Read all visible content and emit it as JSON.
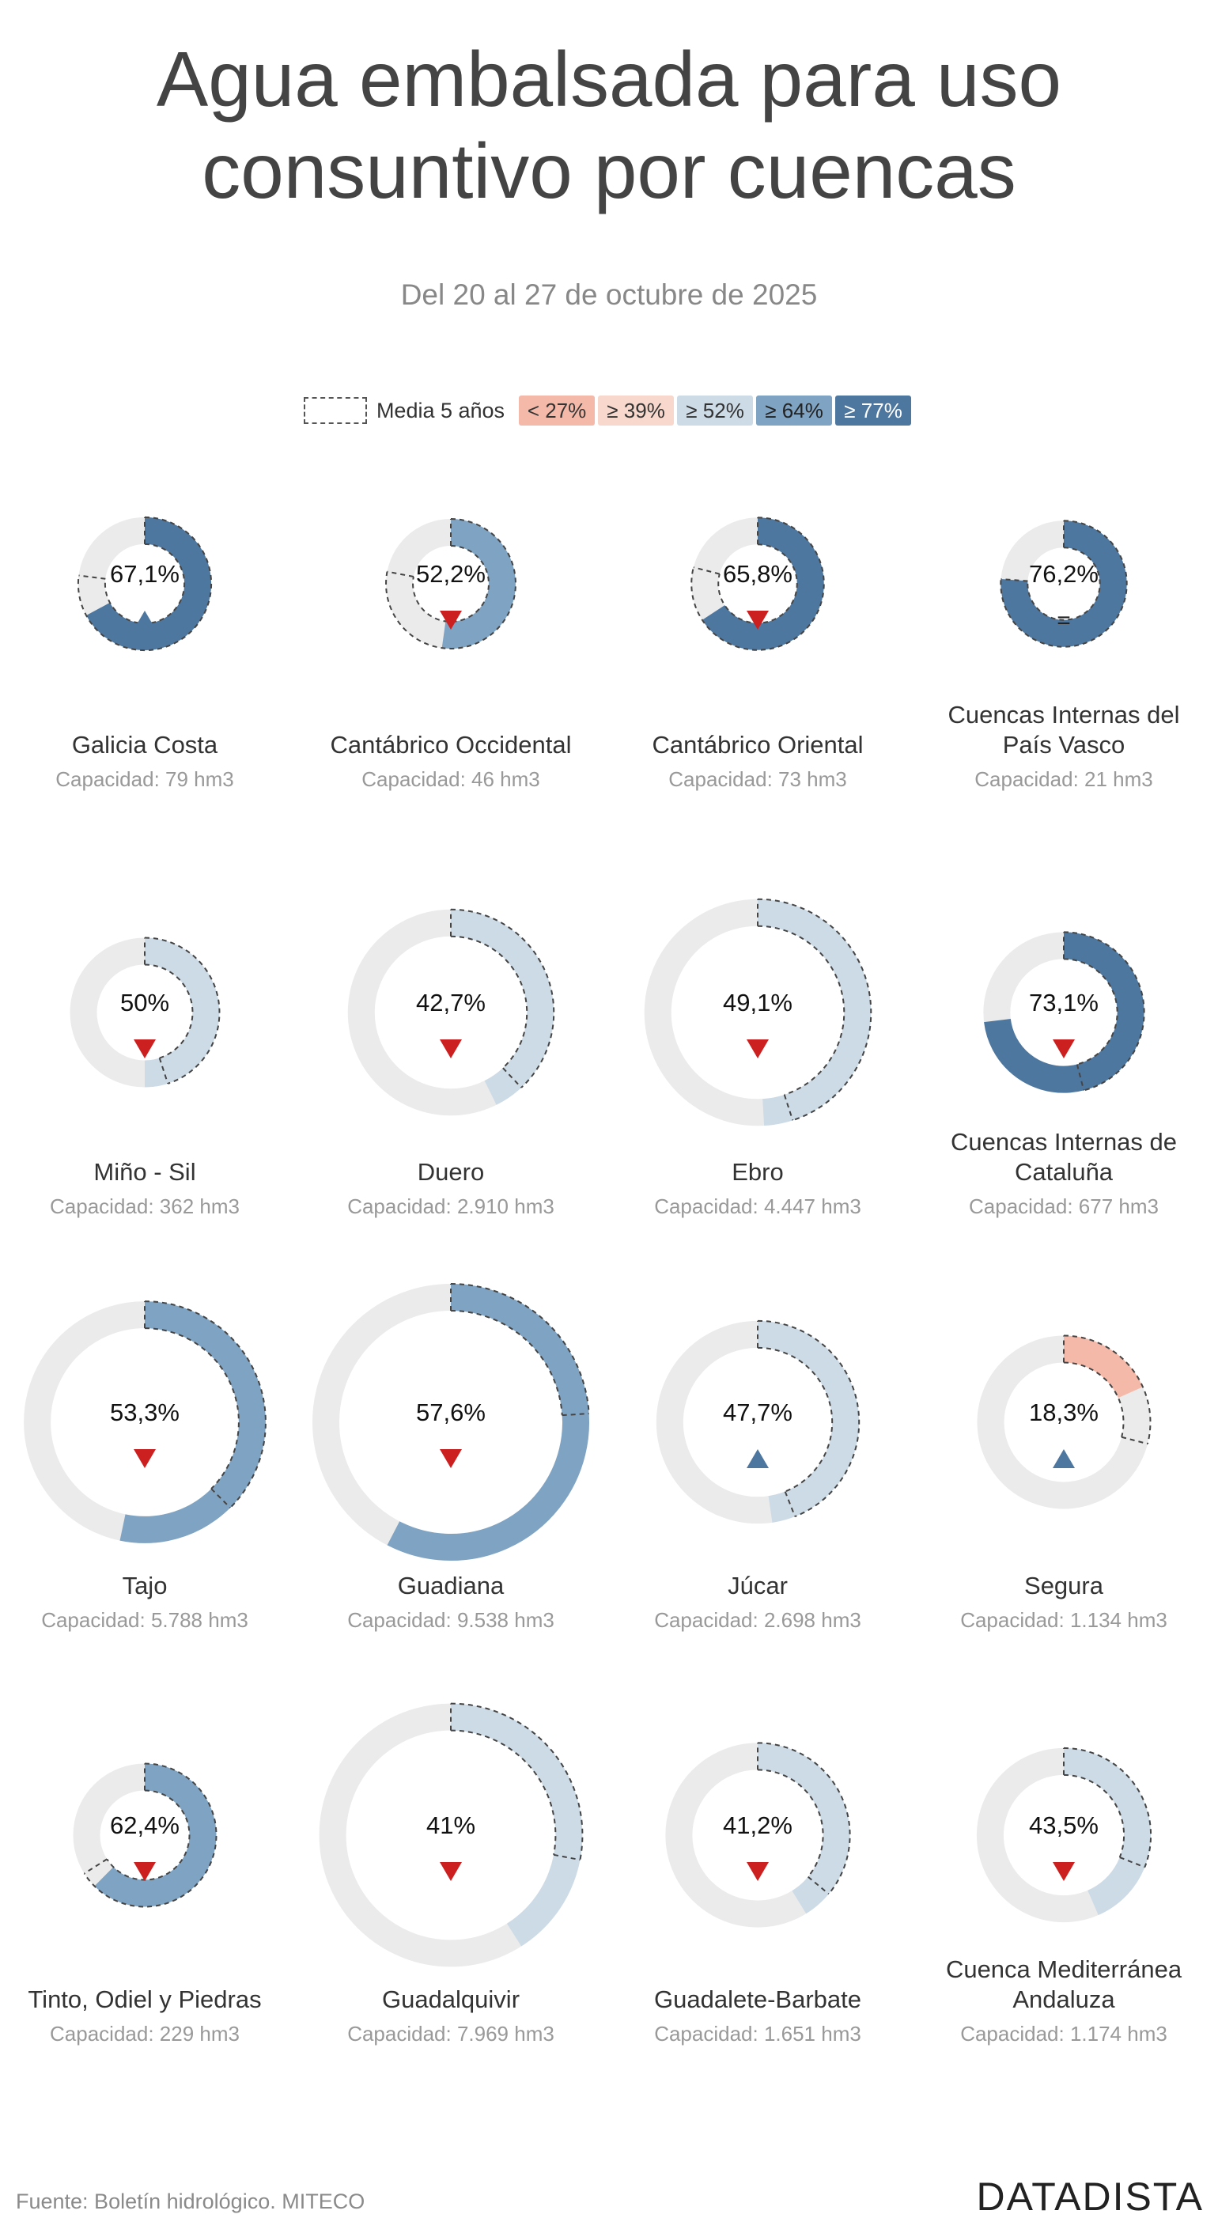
{
  "title_line1": "Agua embalsada para uso",
  "title_line2": "consuntivo por cuencas",
  "subtitle": "Del 20 al 27 de octubre de 2025",
  "legend": {
    "average_label": "Media 5 años",
    "bins": [
      {
        "label": "< 27%",
        "color": "#f4b9a8",
        "text_color": "#333333"
      },
      {
        "label": "≥ 39%",
        "color": "#f8d8cc",
        "text_color": "#333333"
      },
      {
        "label": "≥ 52%",
        "color": "#cddbe7",
        "text_color": "#333333"
      },
      {
        "label": "≥ 64%",
        "color": "#7fa3c3",
        "text_color": "#222222"
      },
      {
        "label": "≥ 77%",
        "color": "#4e77a0",
        "text_color": "#ffffff"
      }
    ]
  },
  "colors": {
    "track": "#ebebeb",
    "up_arrow": "#4e77a0",
    "down_arrow": "#cc2020",
    "equal": "#222222"
  },
  "chart_data": {
    "type": "donut-grid",
    "max_capacity_hm3": 9538,
    "items": [
      {
        "name": "Galicia Costa",
        "capacity_label": "Capacidad: 79 hm3",
        "capacity_hm3": 79,
        "pct_label": "67,1%",
        "value": 67.1,
        "avg": 77.0,
        "color": "#4e77a0",
        "trend": "up"
      },
      {
        "name": "Cantábrico Occidental",
        "capacity_label": "Capacidad: 46 hm3",
        "capacity_hm3": 46,
        "pct_label": "52,2%",
        "value": 52.2,
        "avg": 78.0,
        "color": "#7fa3c3",
        "trend": "down"
      },
      {
        "name": "Cantábrico Oriental",
        "capacity_label": "Capacidad: 73 hm3",
        "capacity_hm3": 73,
        "pct_label": "65,8%",
        "value": 65.8,
        "avg": 79.0,
        "color": "#4e77a0",
        "trend": "down"
      },
      {
        "name": "Cuencas Internas del País Vasco",
        "capacity_label": "Capacidad: 21 hm3",
        "capacity_hm3": 21,
        "pct_label": "76,2%",
        "value": 76.2,
        "avg": 76.2,
        "color": "#4e77a0",
        "trend": "equal"
      },
      {
        "name": "Miño - Sil",
        "capacity_label": "Capacidad: 362 hm3",
        "capacity_hm3": 362,
        "pct_label": "50%",
        "value": 50.0,
        "avg": 45.0,
        "color": "#cddbe7",
        "trend": "down"
      },
      {
        "name": "Duero",
        "capacity_label": "Capacidad: 2.910 hm3",
        "capacity_hm3": 2910,
        "pct_label": "42,7%",
        "value": 42.7,
        "avg": 38.0,
        "color": "#cddbe7",
        "trend": "down"
      },
      {
        "name": "Ebro",
        "capacity_label": "Capacidad: 4.447 hm3",
        "capacity_hm3": 4447,
        "pct_label": "49,1%",
        "value": 49.1,
        "avg": 45.0,
        "color": "#cddbe7",
        "trend": "down"
      },
      {
        "name": "Cuencas Internas de Cataluña",
        "capacity_label": "Capacidad: 677 hm3",
        "capacity_hm3": 677,
        "pct_label": "73,1%",
        "value": 73.1,
        "avg": 46.0,
        "color": "#4e77a0",
        "trend": "down"
      },
      {
        "name": "Tajo",
        "capacity_label": "Capacidad: 5.788 hm3",
        "capacity_hm3": 5788,
        "pct_label": "53,3%",
        "value": 53.3,
        "avg": 37.5,
        "color": "#7fa3c3",
        "trend": "down"
      },
      {
        "name": "Guadiana",
        "capacity_label": "Capacidad: 9.538 hm3",
        "capacity_hm3": 9538,
        "pct_label": "57,6%",
        "value": 57.6,
        "avg": 24.0,
        "color": "#7fa3c3",
        "trend": "down"
      },
      {
        "name": "Júcar",
        "capacity_label": "Capacidad: 2.698 hm3",
        "capacity_hm3": 2698,
        "pct_label": "47,7%",
        "value": 47.7,
        "avg": 44.0,
        "color": "#cddbe7",
        "trend": "up"
      },
      {
        "name": "Segura",
        "capacity_label": "Capacidad: 1.134 hm3",
        "capacity_hm3": 1134,
        "pct_label": "18,3%",
        "value": 18.3,
        "avg": 29.0,
        "color": "#f4b9a8",
        "trend": "up"
      },
      {
        "name": "Tinto, Odiel y Piedras",
        "capacity_label": "Capacidad: 229 hm3",
        "capacity_hm3": 229,
        "pct_label": "62,4%",
        "value": 62.4,
        "avg": 66.0,
        "color": "#7fa3c3",
        "trend": "down"
      },
      {
        "name": "Guadalquivir",
        "capacity_label": "Capacidad: 7.969 hm3",
        "capacity_hm3": 7969,
        "pct_label": "41%",
        "value": 41.0,
        "avg": 28.0,
        "color": "#cddbe7",
        "trend": "down"
      },
      {
        "name": "Guadalete-Barbate",
        "capacity_label": "Capacidad: 1.651 hm3",
        "capacity_hm3": 1651,
        "pct_label": "41,2%",
        "value": 41.2,
        "avg": 36.0,
        "color": "#cddbe7",
        "trend": "down"
      },
      {
        "name": "Cuenca Mediterránea Andaluza",
        "capacity_label": "Capacidad: 1.174 hm3",
        "capacity_hm3": 1174,
        "pct_label": "43,5%",
        "value": 43.5,
        "avg": 31.0,
        "color": "#cddbe7",
        "trend": "down"
      }
    ]
  },
  "footer": {
    "source": "Fuente: Boletín hidrológico. MITECO",
    "brand": "DATADISTA"
  }
}
